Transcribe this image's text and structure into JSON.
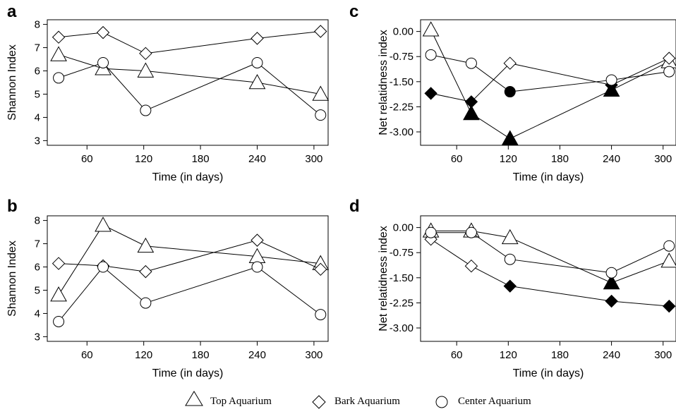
{
  "legend": {
    "top": "Top  Aquarium",
    "bark": "Bark Aquarium",
    "center": "Center Aquarium"
  },
  "chart_data": [
    {
      "panel": "a",
      "type": "line",
      "xlabel": "Time (in days)",
      "ylabel": "Shannon Index",
      "xlim": [
        18,
        315
      ],
      "ylim": [
        2.8,
        8.2
      ],
      "xticks": [
        60,
        120,
        180,
        240,
        300
      ],
      "yticks": [
        3,
        4,
        5,
        6,
        7,
        8
      ],
      "ytick_labels": [
        "3",
        "4",
        "5",
        "6",
        "7",
        "8"
      ],
      "series": [
        {
          "id": "top",
          "marker": "triangle",
          "fill": "open",
          "x": [
            30,
            77,
            122,
            240,
            307
          ],
          "y": [
            6.7,
            6.1,
            6.0,
            5.5,
            5.0
          ]
        },
        {
          "id": "bark",
          "marker": "diamond",
          "fill": "open",
          "x": [
            30,
            77,
            122,
            240,
            307
          ],
          "y": [
            7.45,
            7.65,
            6.75,
            7.4,
            7.7
          ]
        },
        {
          "id": "center",
          "marker": "circle",
          "fill": "open",
          "x": [
            30,
            77,
            122,
            240,
            307
          ],
          "y": [
            5.7,
            6.35,
            4.3,
            6.35,
            4.1
          ]
        }
      ]
    },
    {
      "panel": "b",
      "type": "line",
      "xlabel": "Time (in days)",
      "ylabel": "Shannon Index",
      "xlim": [
        18,
        315
      ],
      "ylim": [
        2.8,
        8.2
      ],
      "xticks": [
        60,
        120,
        180,
        240,
        300
      ],
      "yticks": [
        3,
        4,
        5,
        6,
        7,
        8
      ],
      "ytick_labels": [
        "3",
        "4",
        "5",
        "6",
        "7",
        "8"
      ],
      "series": [
        {
          "id": "top",
          "marker": "triangle",
          "fill": "open",
          "x": [
            30,
            77,
            122,
            240,
            307
          ],
          "y": [
            4.8,
            7.8,
            6.9,
            6.45,
            6.15
          ]
        },
        {
          "id": "bark",
          "marker": "diamond",
          "fill": "open",
          "x": [
            30,
            77,
            122,
            240,
            307
          ],
          "y": [
            6.15,
            6.05,
            5.8,
            7.15,
            5.9
          ]
        },
        {
          "id": "center",
          "marker": "circle",
          "fill": "open",
          "x": [
            30,
            77,
            122,
            240,
            307
          ],
          "y": [
            3.65,
            6.0,
            4.45,
            6.0,
            3.95
          ]
        }
      ]
    },
    {
      "panel": "c",
      "type": "line",
      "xlabel": "Time (in days)",
      "ylabel": "Net relatidness index",
      "xlim": [
        18,
        315
      ],
      "ylim": [
        -3.4,
        0.35
      ],
      "xticks": [
        60,
        120,
        180,
        240,
        300
      ],
      "yticks": [
        0,
        -0.75,
        -1.5,
        -2.25,
        -3.0
      ],
      "ytick_labels": [
        "0.00",
        "-0.75",
        "-1.50",
        "-2.25",
        "-3.00"
      ],
      "series": [
        {
          "id": "top",
          "marker": "triangle",
          "x": [
            30,
            77,
            122,
            240,
            307
          ],
          "y": [
            0.05,
            -2.45,
            -3.2,
            -1.75,
            -0.9
          ],
          "filled": [
            false,
            true,
            true,
            true,
            false
          ]
        },
        {
          "id": "bark",
          "marker": "diamond",
          "x": [
            30,
            77,
            122,
            240,
            307
          ],
          "y": [
            -1.85,
            -2.1,
            -0.95,
            -1.6,
            -0.8
          ],
          "filled": [
            true,
            true,
            false,
            true,
            false
          ]
        },
        {
          "id": "center",
          "marker": "circle",
          "x": [
            30,
            77,
            122,
            240,
            307
          ],
          "y": [
            -0.7,
            -0.95,
            -1.8,
            -1.45,
            -1.2
          ],
          "filled": [
            false,
            false,
            true,
            false,
            false
          ]
        }
      ]
    },
    {
      "panel": "d",
      "type": "line",
      "xlabel": "Time (in days)",
      "ylabel": "Net relatidness index",
      "xlim": [
        18,
        315
      ],
      "ylim": [
        -3.4,
        0.35
      ],
      "xticks": [
        60,
        120,
        180,
        240,
        300
      ],
      "yticks": [
        0,
        -0.75,
        -1.5,
        -2.25,
        -3.0
      ],
      "ytick_labels": [
        "0.00",
        "-0.75",
        "-1.50",
        "-2.25",
        "-3.00"
      ],
      "series": [
        {
          "id": "top",
          "marker": "triangle",
          "x": [
            30,
            77,
            122,
            240,
            307
          ],
          "y": [
            -0.1,
            -0.1,
            -0.3,
            -1.65,
            -1.0
          ],
          "filled": [
            false,
            false,
            false,
            true,
            false
          ]
        },
        {
          "id": "bark",
          "marker": "diamond",
          "x": [
            30,
            77,
            122,
            240,
            307
          ],
          "y": [
            -0.35,
            -1.15,
            -1.75,
            -2.2,
            -2.35
          ],
          "filled": [
            false,
            false,
            true,
            true,
            true
          ]
        },
        {
          "id": "center",
          "marker": "circle",
          "x": [
            30,
            77,
            122,
            240,
            307
          ],
          "y": [
            -0.15,
            -0.15,
            -0.95,
            -1.35,
            -0.55
          ],
          "filled": [
            false,
            false,
            false,
            false,
            false
          ]
        }
      ]
    }
  ]
}
